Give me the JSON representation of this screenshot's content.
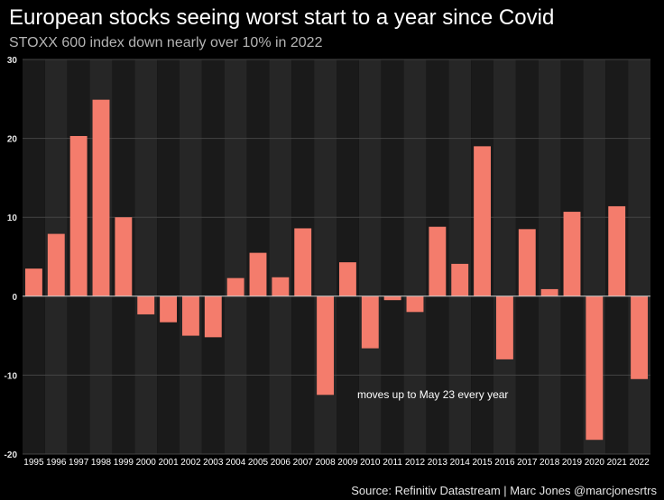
{
  "title": "European stocks seeing worst start to a year since Covid",
  "subtitle": "STOXX 600 index down nearly over 10% in 2022",
  "source": "Source: Refinitiv Datastream | Marc Jones @marcjonesrtrs",
  "colors": {
    "background": "#000000",
    "plot_band_dark": "#1a1a1a",
    "plot_band_light": "#262626",
    "bar": "#f47c6c",
    "zero_line": "#cfcfcf",
    "grid": "#444444"
  },
  "chart_data": {
    "type": "bar",
    "categories": [
      "1995",
      "1996",
      "1997",
      "1998",
      "1999",
      "2000",
      "2001",
      "2002",
      "2003",
      "2004",
      "2005",
      "2006",
      "2007",
      "2008",
      "2009",
      "2010",
      "2011",
      "2012",
      "2013",
      "2014",
      "2015",
      "2016",
      "2017",
      "2018",
      "2019",
      "2020",
      "2021",
      "2022"
    ],
    "values": [
      3.5,
      7.9,
      20.3,
      24.9,
      10.0,
      -2.3,
      -3.3,
      -5.0,
      -5.2,
      2.3,
      5.5,
      2.4,
      8.6,
      -12.5,
      4.3,
      -6.6,
      -0.5,
      -2.0,
      8.8,
      4.1,
      19.0,
      -8.0,
      8.5,
      0.9,
      10.7,
      -18.2,
      11.4,
      -10.5
    ],
    "ylim": [
      -20,
      30
    ],
    "yticks": [
      -20,
      -10,
      0,
      10,
      20,
      30
    ],
    "grid": true,
    "xlabel": "",
    "ylabel": "",
    "annotation": "moves up to May 23 every year"
  }
}
